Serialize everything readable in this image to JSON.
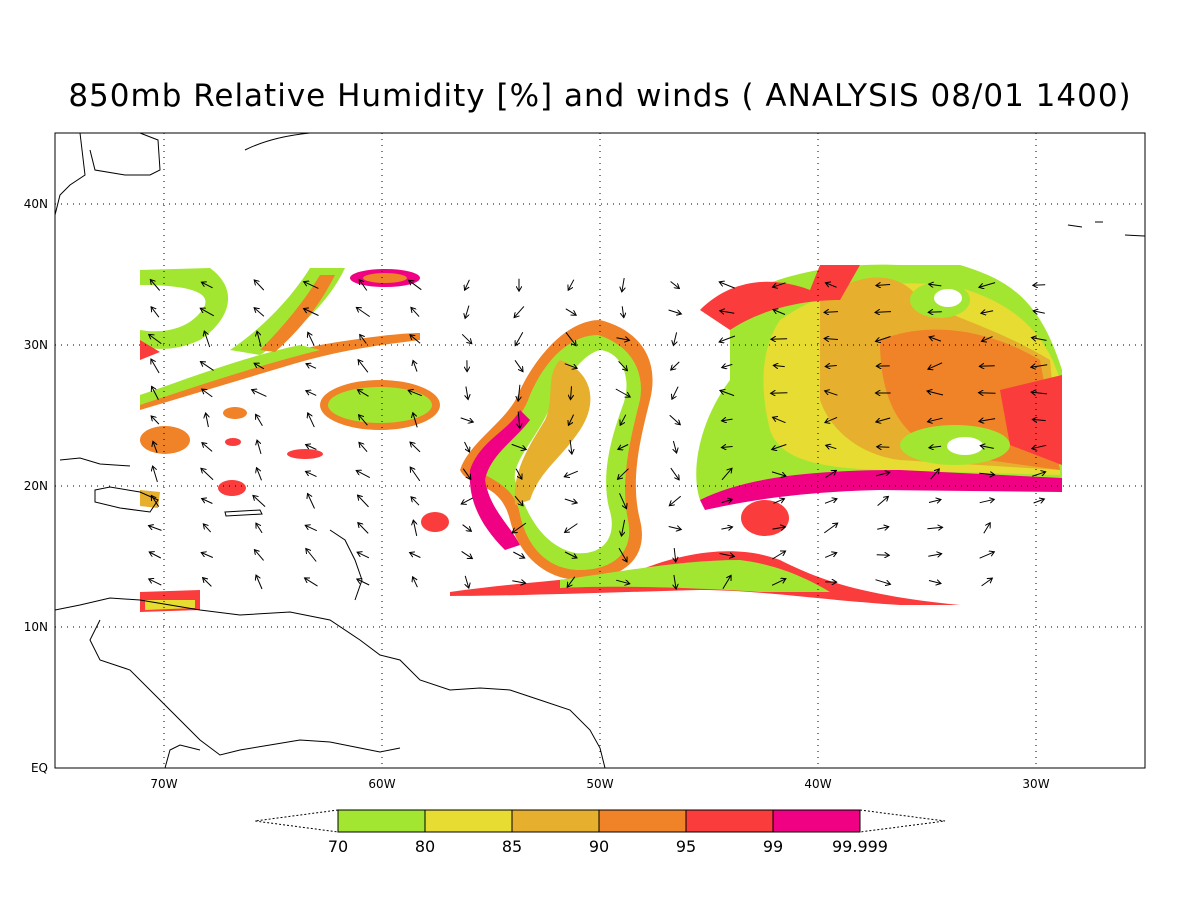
{
  "title": "850mb Relative Humidity [%] and winds ( ANALYSIS 08/01 1400)",
  "axes": {
    "lon_ticks": [
      "70W",
      "60W",
      "50W",
      "40W",
      "30W"
    ],
    "lat_ticks": [
      "40N",
      "30N",
      "20N",
      "10N",
      "EQ"
    ],
    "lon_range": [
      -75,
      -25
    ],
    "lat_range": [
      0,
      45
    ]
  },
  "colorbar": {
    "labels": [
      "70",
      "80",
      "85",
      "90",
      "95",
      "99",
      "99.999"
    ],
    "colors": [
      "#a2e632",
      "#e6dc32",
      "#e6af2d",
      "#f08228",
      "#fa3c3c",
      "#f00082"
    ]
  },
  "colors": {
    "frame": "#000000",
    "background": "#ffffff"
  }
}
